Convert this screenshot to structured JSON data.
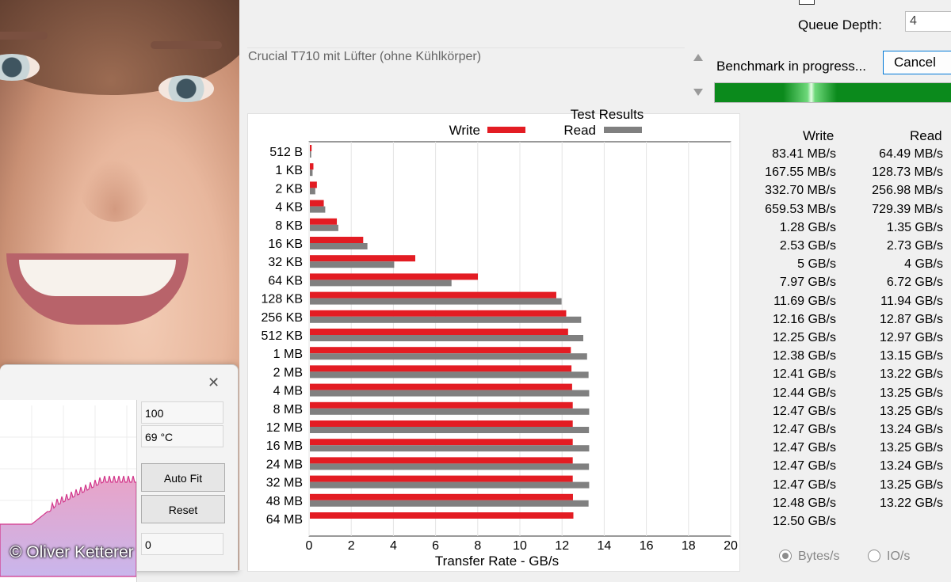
{
  "watermark": "© Oliver Ketterer",
  "monitor": {
    "field1": "100",
    "field2": "69 °C",
    "auto_fit": "Auto Fit",
    "reset": "Reset",
    "field3": "0",
    "close_icon": "close-icon"
  },
  "settings": {
    "queue_depth_label": "Queue Depth:",
    "queue_depth_value": "4"
  },
  "description": "Crucial T710 mit Lüfter (ohne Kühlkörper)",
  "status_text": "Benchmark in progress...",
  "cancel_label": "Cancel",
  "progress": 1.0,
  "colors": {
    "write": "#e31c23",
    "read": "#808080",
    "progress": "#0b8a1c"
  },
  "units": {
    "bytes": "Bytes/s",
    "io": "IO/s",
    "selected": "bytes"
  },
  "results": {
    "write_header": "Write",
    "read_header": "Read",
    "rows": [
      {
        "size": "512 B",
        "write": "83.41 MB/s",
        "read": "64.49 MB/s"
      },
      {
        "size": "1 KB",
        "write": "167.55 MB/s",
        "read": "128.73 MB/s"
      },
      {
        "size": "2 KB",
        "write": "332.70 MB/s",
        "read": "256.98 MB/s"
      },
      {
        "size": "4 KB",
        "write": "659.53 MB/s",
        "read": "729.39 MB/s"
      },
      {
        "size": "8 KB",
        "write": "1.28 GB/s",
        "read": "1.35 GB/s"
      },
      {
        "size": "16 KB",
        "write": "2.53 GB/s",
        "read": "2.73 GB/s"
      },
      {
        "size": "32 KB",
        "write": "5 GB/s",
        "read": "4 GB/s"
      },
      {
        "size": "64 KB",
        "write": "7.97 GB/s",
        "read": "6.72 GB/s"
      },
      {
        "size": "128 KB",
        "write": "11.69 GB/s",
        "read": "11.94 GB/s"
      },
      {
        "size": "256 KB",
        "write": "12.16 GB/s",
        "read": "12.87 GB/s"
      },
      {
        "size": "512 KB",
        "write": "12.25 GB/s",
        "read": "12.97 GB/s"
      },
      {
        "size": "1 MB",
        "write": "12.38 GB/s",
        "read": "13.15 GB/s"
      },
      {
        "size": "2 MB",
        "write": "12.41 GB/s",
        "read": "13.22 GB/s"
      },
      {
        "size": "4 MB",
        "write": "12.44 GB/s",
        "read": "13.25 GB/s"
      },
      {
        "size": "8 MB",
        "write": "12.47 GB/s",
        "read": "13.25 GB/s"
      },
      {
        "size": "12 MB",
        "write": "12.47 GB/s",
        "read": "13.24 GB/s"
      },
      {
        "size": "16 MB",
        "write": "12.47 GB/s",
        "read": "13.25 GB/s"
      },
      {
        "size": "24 MB",
        "write": "12.47 GB/s",
        "read": "13.24 GB/s"
      },
      {
        "size": "32 MB",
        "write": "12.47 GB/s",
        "read": "13.25 GB/s"
      },
      {
        "size": "48 MB",
        "write": "12.48 GB/s",
        "read": "13.22 GB/s"
      },
      {
        "size": "64 MB",
        "write": "12.50 GB/s",
        "read": ""
      }
    ]
  },
  "chart_data": {
    "type": "bar",
    "orientation": "horizontal",
    "title": "Test Results",
    "xlabel": "Transfer Rate - GB/s",
    "ylabel": "",
    "xlim": [
      0,
      20
    ],
    "xticks": [
      0,
      2,
      4,
      6,
      8,
      10,
      12,
      14,
      16,
      18,
      20
    ],
    "legend_position": "top",
    "grid": true,
    "categories": [
      "512 B",
      "1 KB",
      "2 KB",
      "4 KB",
      "8 KB",
      "16 KB",
      "32 KB",
      "64 KB",
      "128 KB",
      "256 KB",
      "512 KB",
      "1 MB",
      "2 MB",
      "4 MB",
      "8 MB",
      "12 MB",
      "16 MB",
      "24 MB",
      "32 MB",
      "48 MB",
      "64 MB"
    ],
    "series": [
      {
        "name": "Write",
        "color": "#e31c23",
        "values": [
          0.083,
          0.168,
          0.333,
          0.66,
          1.28,
          2.53,
          5,
          7.97,
          11.69,
          12.16,
          12.25,
          12.38,
          12.41,
          12.44,
          12.47,
          12.47,
          12.47,
          12.47,
          12.47,
          12.48,
          12.5
        ]
      },
      {
        "name": "Read",
        "color": "#808080",
        "values": [
          0.064,
          0.129,
          0.257,
          0.729,
          1.35,
          2.73,
          4,
          6.72,
          11.94,
          12.87,
          12.97,
          13.15,
          13.22,
          13.25,
          13.25,
          13.24,
          13.25,
          13.24,
          13.25,
          13.22,
          null
        ]
      }
    ]
  }
}
